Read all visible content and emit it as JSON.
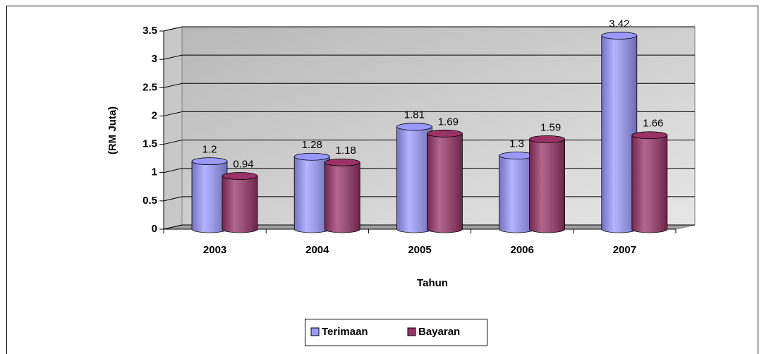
{
  "chart_data": {
    "type": "bar",
    "x_label": "Tahun",
    "y_label": "(RM Juta)",
    "categories": [
      "2003",
      "2004",
      "2005",
      "2006",
      "2007"
    ],
    "series": [
      {
        "name": "Terimaan",
        "color": "#9999ff",
        "values": [
          1.2,
          1.28,
          1.81,
          1.3,
          3.42
        ]
      },
      {
        "name": "Bayaran",
        "color": "#993366",
        "values": [
          0.94,
          1.18,
          1.69,
          1.59,
          1.66
        ]
      }
    ],
    "ylim": [
      0,
      3.5
    ],
    "yticks": [
      0,
      0.5,
      1,
      1.5,
      2,
      2.5,
      3,
      3.5
    ],
    "grid": true,
    "legend": "bottom"
  }
}
